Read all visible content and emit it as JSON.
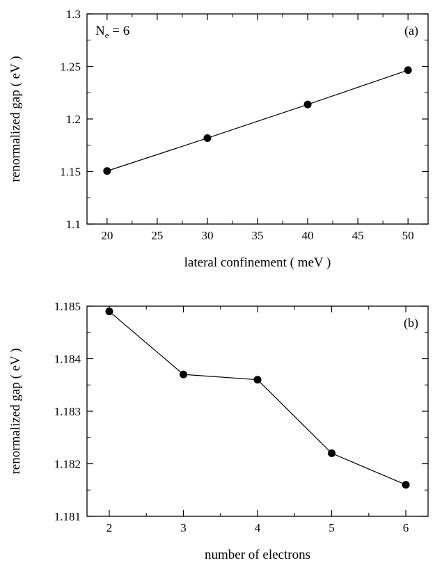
{
  "chart_data": [
    {
      "panel": "(a)",
      "type": "line",
      "title": "",
      "xlabel": "lateral confinement ( meV )",
      "ylabel": "renormalized gap ( eV )",
      "annotation": {
        "main": "N",
        "sub": "e",
        "rest": " = 6"
      },
      "x": [
        20,
        30,
        40,
        50
      ],
      "series": [
        {
          "values": [
            1.1505,
            1.1818,
            1.2138,
            1.2465
          ]
        }
      ],
      "xlim": [
        18,
        52
      ],
      "ylim": [
        1.1,
        1.3
      ],
      "xticks": [
        20,
        25,
        30,
        35,
        40,
        45,
        50
      ],
      "xtick_labels": [
        "20",
        "25",
        "30",
        "35",
        "40",
        "45",
        "50"
      ],
      "yticks": [
        1.1,
        1.15,
        1.2,
        1.25,
        1.3
      ],
      "ytick_labels": [
        "1.1",
        "1.15",
        "1.2",
        "1.25",
        "1.3"
      ],
      "grid": false,
      "marker": "filled-circle",
      "color": "#000000"
    },
    {
      "panel": "(b)",
      "type": "line",
      "title": "",
      "xlabel": "number of electrons",
      "ylabel": "renormalized gap ( eV )",
      "x": [
        2,
        3,
        4,
        5,
        6
      ],
      "series": [
        {
          "values": [
            1.1849,
            1.1837,
            1.1836,
            1.1822,
            1.1816
          ]
        }
      ],
      "xlim": [
        1.7,
        6.3
      ],
      "ylim": [
        1.181,
        1.185
      ],
      "xticks": [
        2,
        3,
        4,
        5,
        6
      ],
      "xtick_labels": [
        "2",
        "3",
        "4",
        "5",
        "6"
      ],
      "yticks": [
        1.181,
        1.182,
        1.183,
        1.184,
        1.185
      ],
      "ytick_labels": [
        "1.181",
        "1.182",
        "1.183",
        "1.184",
        "1.185"
      ],
      "grid": false,
      "marker": "filled-circle",
      "color": "#000000"
    }
  ]
}
